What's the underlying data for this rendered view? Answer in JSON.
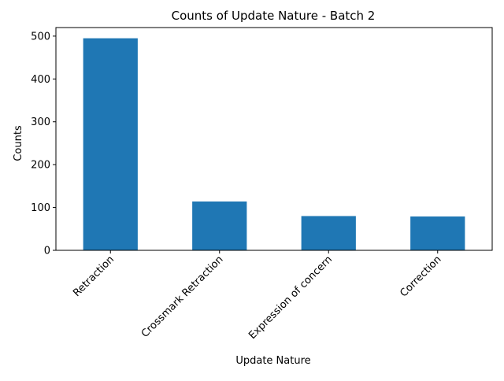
{
  "chart_data": {
    "type": "bar",
    "title": "Counts of Update Nature - Batch 2",
    "xlabel": "Update Nature",
    "ylabel": "Counts",
    "categories": [
      "Retraction",
      "Crossmark Retraction",
      "Expression of concern",
      "Correction"
    ],
    "values": [
      495,
      114,
      80,
      79
    ],
    "ylim": [
      0,
      520
    ],
    "yticks": [
      0,
      100,
      200,
      300,
      400,
      500
    ],
    "x_tick_rotation_deg": 45,
    "bar_color": "#1f77b4",
    "grid": false,
    "legend": "none"
  }
}
